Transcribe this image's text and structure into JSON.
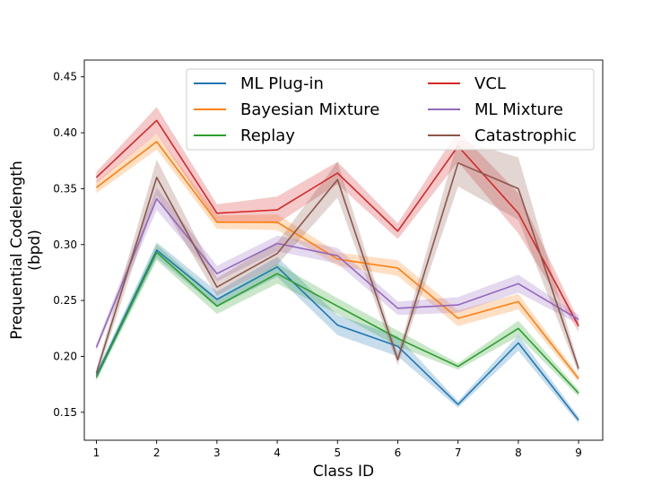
{
  "chart_data": {
    "type": "line",
    "title": "",
    "xlabel": "Class ID",
    "ylabel_line1": "Prequential Codelength",
    "ylabel_line2": "(bpd)",
    "x": [
      1,
      2,
      3,
      4,
      5,
      6,
      7,
      8,
      9
    ],
    "xlim": [
      0.8,
      9.4
    ],
    "ylim": [
      0.125,
      0.465
    ],
    "xticks": [
      "1",
      "2",
      "3",
      "4",
      "5",
      "6",
      "7",
      "8",
      "9"
    ],
    "yticks": [
      "0.15",
      "0.20",
      "0.25",
      "0.30",
      "0.35",
      "0.40",
      "0.45"
    ],
    "ytick_values": [
      0.15,
      0.2,
      0.25,
      0.3,
      0.35,
      0.4,
      0.45
    ],
    "grid": false,
    "legend_position": "top-right",
    "series": [
      {
        "name": "ML Plug-in",
        "color": "#1f77b4",
        "values": [
          0.183,
          0.295,
          0.251,
          0.28,
          0.228,
          0.209,
          0.157,
          0.212,
          0.143
        ],
        "lower": [
          0.18,
          0.288,
          0.244,
          0.271,
          0.219,
          0.2,
          0.154,
          0.205,
          0.14
        ],
        "upper": [
          0.186,
          0.302,
          0.258,
          0.289,
          0.237,
          0.218,
          0.16,
          0.219,
          0.146
        ]
      },
      {
        "name": "Bayesian Mixture",
        "color": "#ff7f0e",
        "values": [
          0.351,
          0.392,
          0.32,
          0.32,
          0.287,
          0.279,
          0.234,
          0.249,
          0.18
        ],
        "lower": [
          0.346,
          0.385,
          0.314,
          0.313,
          0.281,
          0.272,
          0.227,
          0.242,
          0.177
        ],
        "upper": [
          0.356,
          0.399,
          0.326,
          0.327,
          0.293,
          0.286,
          0.241,
          0.256,
          0.183
        ]
      },
      {
        "name": "Replay",
        "color": "#2ca02c",
        "values": [
          0.181,
          0.293,
          0.245,
          0.274,
          0.245,
          0.216,
          0.191,
          0.225,
          0.167
        ],
        "lower": [
          0.178,
          0.286,
          0.238,
          0.265,
          0.238,
          0.209,
          0.188,
          0.218,
          0.164
        ],
        "upper": [
          0.184,
          0.3,
          0.252,
          0.283,
          0.252,
          0.223,
          0.194,
          0.232,
          0.17
        ]
      },
      {
        "name": "VCL",
        "color": "#d62728",
        "values": [
          0.36,
          0.411,
          0.328,
          0.331,
          0.364,
          0.312,
          0.388,
          0.328,
          0.227
        ],
        "lower": [
          0.355,
          0.399,
          0.32,
          0.319,
          0.354,
          0.305,
          0.374,
          0.31,
          0.222
        ],
        "upper": [
          0.365,
          0.423,
          0.336,
          0.343,
          0.374,
          0.319,
          0.402,
          0.346,
          0.232
        ]
      },
      {
        "name": "ML Mixture",
        "color": "#9467bd",
        "values": [
          0.208,
          0.341,
          0.274,
          0.301,
          0.29,
          0.243,
          0.246,
          0.265,
          0.233
        ],
        "lower": [
          0.205,
          0.331,
          0.267,
          0.294,
          0.283,
          0.237,
          0.239,
          0.257,
          0.229
        ],
        "upper": [
          0.211,
          0.351,
          0.281,
          0.308,
          0.297,
          0.249,
          0.253,
          0.273,
          0.237
        ]
      },
      {
        "name": "Catastrophic",
        "color": "#8c564b",
        "values": [
          0.185,
          0.36,
          0.262,
          0.292,
          0.358,
          0.197,
          0.373,
          0.35,
          0.189
        ],
        "lower": [
          0.181,
          0.344,
          0.254,
          0.282,
          0.342,
          0.192,
          0.352,
          0.322,
          0.185
        ],
        "upper": [
          0.189,
          0.376,
          0.27,
          0.302,
          0.374,
          0.202,
          0.394,
          0.378,
          0.193
        ]
      }
    ]
  }
}
